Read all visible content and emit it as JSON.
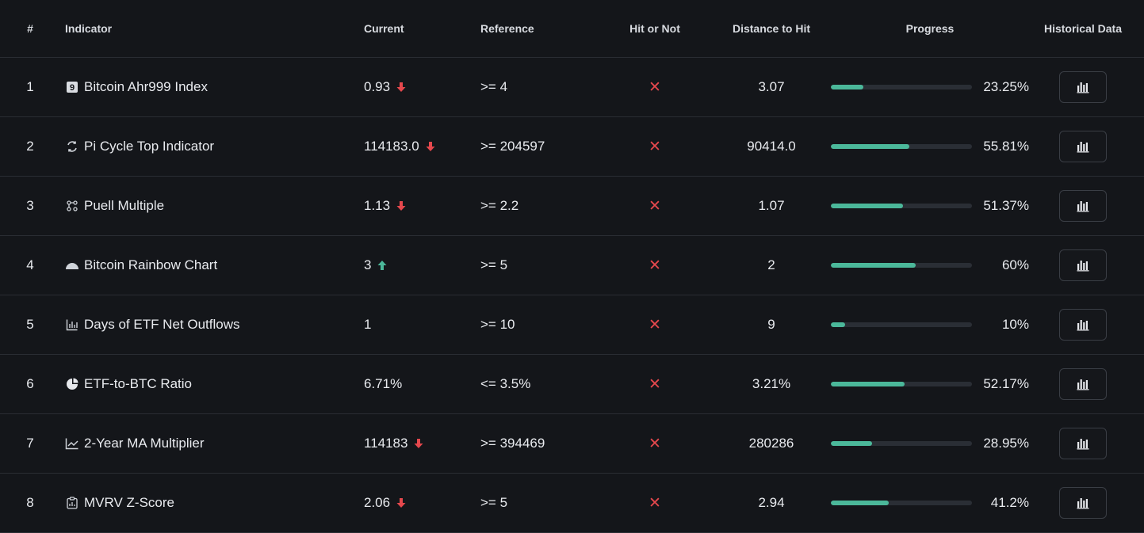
{
  "header": {
    "num": "#",
    "indicator": "Indicator",
    "current": "Current",
    "reference": "Reference",
    "hit": "Hit or Not",
    "distance": "Distance to Hit",
    "progress": "Progress",
    "historical": "Historical Data"
  },
  "colors": {
    "down": "#e5484d",
    "up": "#4bb89a",
    "bar": "#4bb89a",
    "miss": "#e5484d"
  },
  "rows": [
    {
      "num": "1",
      "icon": "ahr999-square-9-icon",
      "icon_glyph": "9",
      "name": "Bitcoin Ahr999 Index",
      "current": "0.93",
      "trend": "down",
      "reference": ">= 4",
      "hit": "✕",
      "distance": "3.07",
      "progress": 23.25,
      "progress_label": "23.25%"
    },
    {
      "num": "2",
      "icon": "cycle-icon",
      "name": "Pi Cycle Top Indicator",
      "current": "114183.0",
      "trend": "down",
      "reference": ">= 204597",
      "hit": "✕",
      "distance": "90414.0",
      "progress": 55.81,
      "progress_label": "55.81%"
    },
    {
      "num": "3",
      "icon": "network-nodes-icon",
      "name": "Puell Multiple",
      "current": "1.13",
      "trend": "down",
      "reference": ">= 2.2",
      "hit": "✕",
      "distance": "1.07",
      "progress": 51.37,
      "progress_label": "51.37%"
    },
    {
      "num": "4",
      "icon": "rainbow-half-circle-icon",
      "name": "Bitcoin Rainbow Chart",
      "current": "3",
      "trend": "up",
      "reference": ">= 5",
      "hit": "✕",
      "distance": "2",
      "progress": 60,
      "progress_label": "60%"
    },
    {
      "num": "5",
      "icon": "bar-chart-icon",
      "name": "Days of ETF Net Outflows",
      "current": "1",
      "trend": "",
      "reference": ">= 10",
      "hit": "✕",
      "distance": "9",
      "progress": 10,
      "progress_label": "10%"
    },
    {
      "num": "6",
      "icon": "pie-chart-icon",
      "name": "ETF-to-BTC Ratio",
      "current": "6.71%",
      "trend": "",
      "reference": "<= 3.5%",
      "hit": "✕",
      "distance": "3.21%",
      "progress": 52.17,
      "progress_label": "52.17%"
    },
    {
      "num": "7",
      "icon": "line-chart-icon",
      "name": "2-Year MA Multiplier",
      "current": "114183",
      "trend": "down",
      "reference": ">= 394469",
      "hit": "✕",
      "distance": "280286",
      "progress": 28.95,
      "progress_label": "28.95%"
    },
    {
      "num": "8",
      "icon": "clipboard-chart-icon",
      "name": "MVRV Z-Score",
      "current": "2.06",
      "trend": "down",
      "reference": ">= 5",
      "hit": "✕",
      "distance": "2.94",
      "progress": 41.2,
      "progress_label": "41.2%"
    }
  ]
}
